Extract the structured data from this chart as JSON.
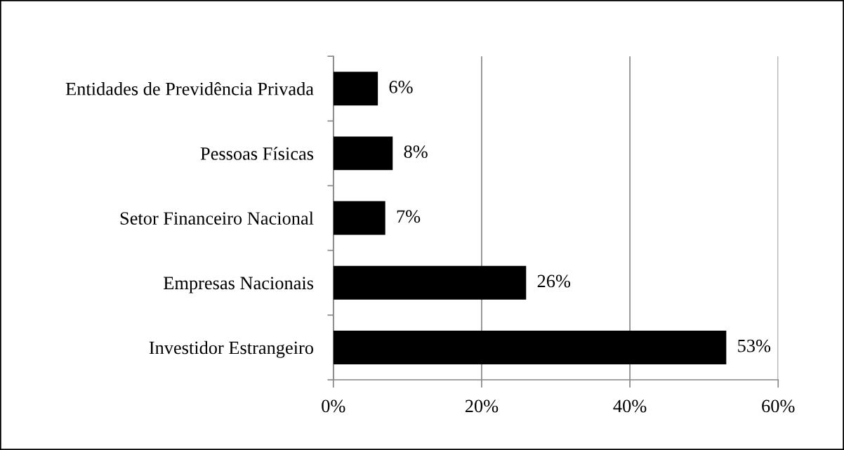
{
  "chart_data": {
    "type": "bar",
    "orientation": "horizontal",
    "categories": [
      "Entidades de Previdência Privada",
      "Pessoas Físicas",
      "Setor Financeiro Nacional",
      "Empresas Nacionais",
      "Investidor Estrangeiro"
    ],
    "values": [
      6,
      8,
      7,
      26,
      53
    ],
    "color": "#000000",
    "value_labels": [
      "6%",
      "8%",
      "7%",
      "26%",
      "53%"
    ],
    "xlim": [
      0,
      60
    ],
    "xticks": [
      {
        "value": 0,
        "label": "0%"
      },
      {
        "value": 20,
        "label": "20%"
      },
      {
        "value": 40,
        "label": "40%"
      },
      {
        "value": 60,
        "label": "60%"
      }
    ],
    "grid": "x"
  }
}
